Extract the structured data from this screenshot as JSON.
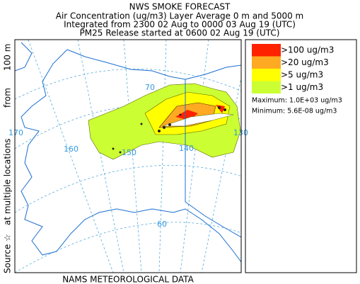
{
  "header": {
    "title": "NWS SMOKE FORECAST",
    "lines": [
      "Air Concentration (ug/m3) Layer Average    0 m and  5000 m",
      "Integrated from 2300 02 Aug to 0000 03 Aug 19 (UTC)",
      "PM25 Release started at 0600 02 Aug 19 (UTC)"
    ]
  },
  "side_label": [
    "Source ☆",
    "at multiple locations",
    "from",
    "100 m"
  ],
  "map": {
    "labels": [
      "70",
      "170",
      "160",
      "150",
      "140",
      "130",
      "60"
    ]
  },
  "legend": {
    "items": [
      {
        "label": ">100 ug/m3",
        "color": "#ff2200"
      },
      {
        "label": ">20 ug/m3",
        "color": "#ffaa22"
      },
      {
        "label": ">5 ug/m3",
        "color": "#ffff00"
      },
      {
        "label": ">1 ug/m3",
        "color": "#ccff33"
      }
    ],
    "maximum": "Maximum: 1.0E+03 ug/m3",
    "minimum": "Minimum: 5.6E-08 ug/m3"
  },
  "footer": "NAMS METEOROLOGICAL DATA"
}
